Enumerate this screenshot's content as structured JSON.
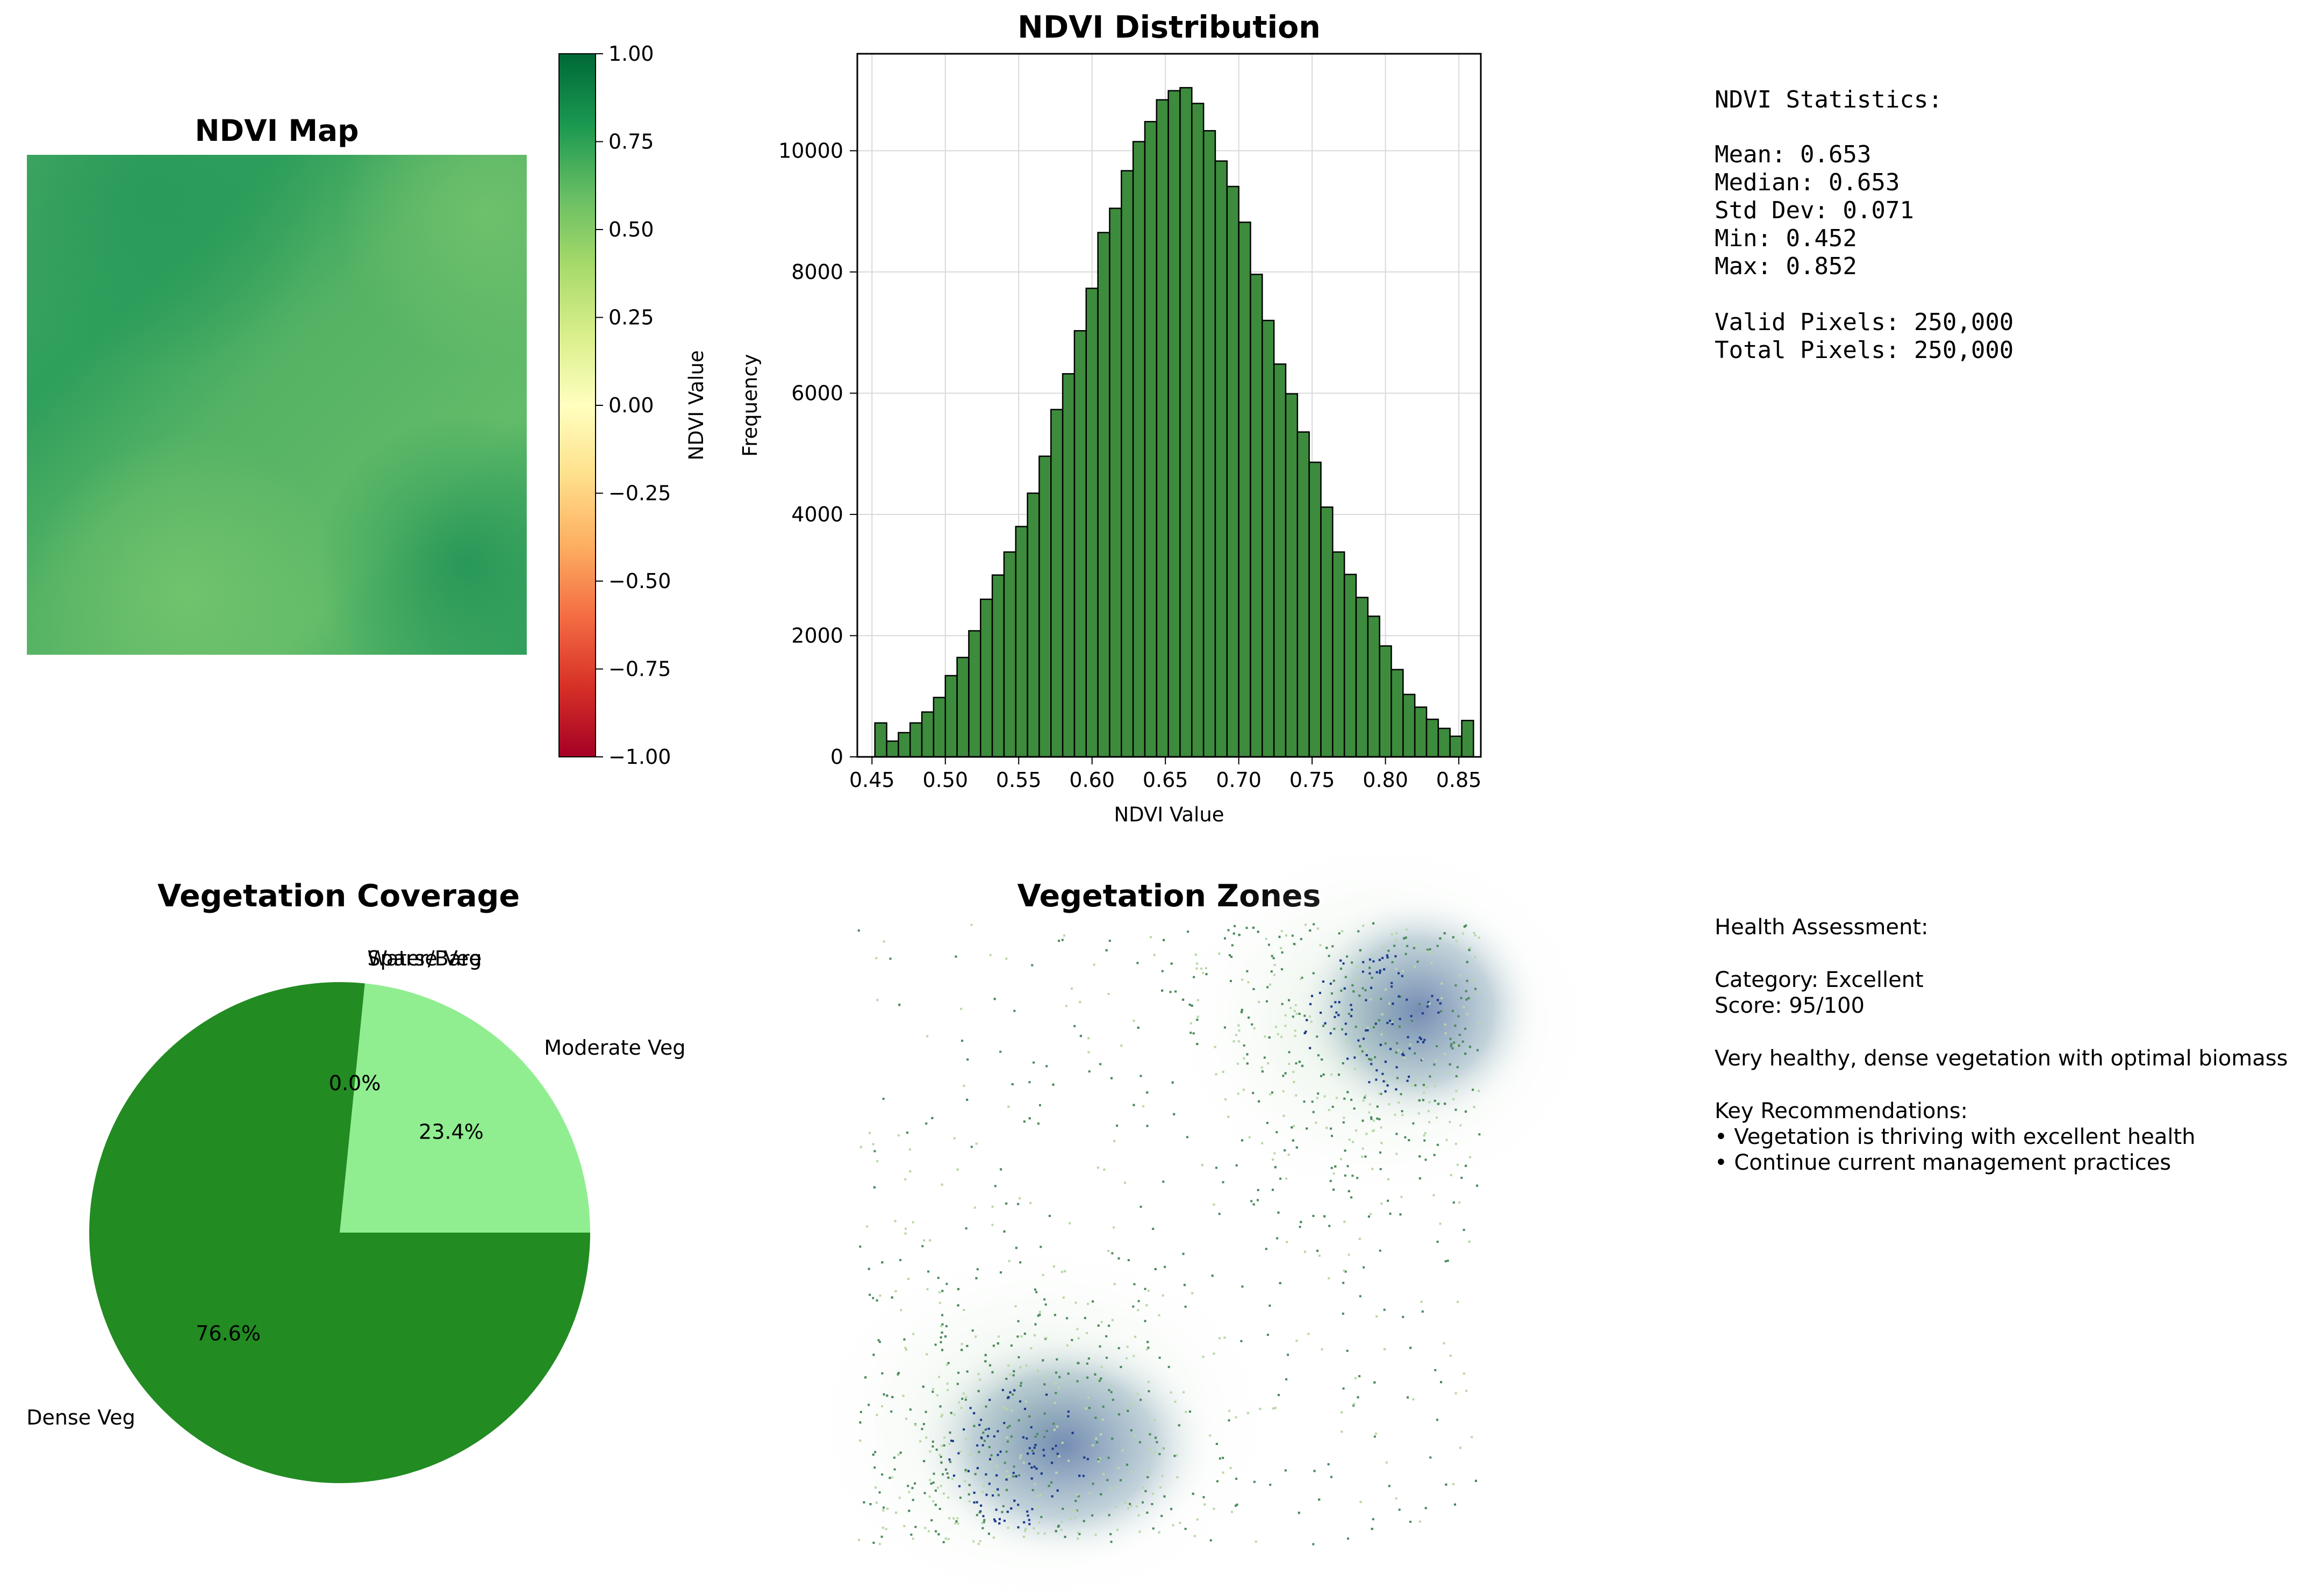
{
  "ndvi_map": {
    "title": "NDVI Map",
    "colorbar": {
      "label": "NDVI Value",
      "ticks": [
        "1.00",
        "0.75",
        "0.50",
        "0.25",
        "0.00",
        "−0.25",
        "−0.50",
        "−0.75",
        "−1.00"
      ],
      "range": [
        -1,
        1
      ],
      "colors": [
        "#a50026",
        "#d73027",
        "#f46d43",
        "#fdae61",
        "#fee08b",
        "#ffffbf",
        "#d9ef8b",
        "#a6d96a",
        "#66bd63",
        "#1a9850",
        "#006837"
      ]
    }
  },
  "chart_data": [
    {
      "type": "heatmap",
      "title": "NDVI Map",
      "colorbar_label": "NDVI Value",
      "colorbar_range": [
        -1,
        1
      ],
      "value_range": [
        0.452,
        0.852
      ]
    },
    {
      "type": "bar",
      "title": "NDVI Distribution",
      "xlabel": "NDVI Value",
      "ylabel": "Frequency",
      "xlim": [
        0.44,
        0.865
      ],
      "ylim": [
        0,
        11600
      ],
      "grid": true,
      "bar_color": "#3d8b3d",
      "xticks": [
        "0.45",
        "0.50",
        "0.55",
        "0.60",
        "0.65",
        "0.70",
        "0.75",
        "0.80",
        "0.85"
      ],
      "yticks": [
        "0",
        "2000",
        "4000",
        "6000",
        "8000",
        "10000"
      ],
      "bin_edges_start": 0.452,
      "bin_width": 0.008,
      "values": [
        560,
        260,
        400,
        560,
        740,
        980,
        1340,
        1640,
        2080,
        2600,
        3000,
        3380,
        3800,
        4350,
        4960,
        5730,
        6320,
        7030,
        7730,
        8650,
        9050,
        9670,
        10150,
        10480,
        10840,
        10990,
        11040,
        10780,
        10330,
        9830,
        9410,
        8820,
        7960,
        7200,
        6480,
        5990,
        5360,
        4860,
        4120,
        3380,
        3010,
        2630,
        2320,
        1830,
        1440,
        1030,
        820,
        620,
        470,
        340,
        600
      ]
    },
    {
      "type": "pie",
      "title": "Vegetation Coverage",
      "labels": [
        "Moderate Veg",
        "Water/Bare",
        "Sparse Veg",
        "Dense Veg"
      ],
      "values": [
        23.4,
        0.0,
        0.0,
        76.6
      ],
      "pct_labels": [
        "23.4%",
        "0.0%",
        "0.0%",
        "76.6%"
      ],
      "colors": [
        "#90ee90",
        "#8b4513",
        "#ffff00",
        "#228b22"
      ]
    },
    {
      "type": "heatmap",
      "title": "Vegetation Zones"
    }
  ],
  "stats": {
    "title": "NDVI Statistics:",
    "mean": "Mean: 0.653",
    "median": "Median: 0.653",
    "std": "Std Dev: 0.071",
    "min": "Min: 0.452",
    "max": "Max: 0.852",
    "valid": "Valid Pixels: 250,000",
    "total": "Total Pixels: 250,000"
  },
  "health": {
    "title": "Health Assessment:",
    "category": "Category: Excellent",
    "score": "Score: 95/100",
    "description": "Very healthy, dense vegetation with optimal biomass",
    "rec_title": "Key Recommendations:",
    "rec1": "• Vegetation is thriving with excellent health",
    "rec2": "• Continue current management practices"
  },
  "colors": {
    "hist_bar": "#3d8b3d",
    "zone_dense": "#1a3a8c",
    "zone_moderate": "#4a8a5a",
    "zone_light": "#b8d8a8"
  }
}
